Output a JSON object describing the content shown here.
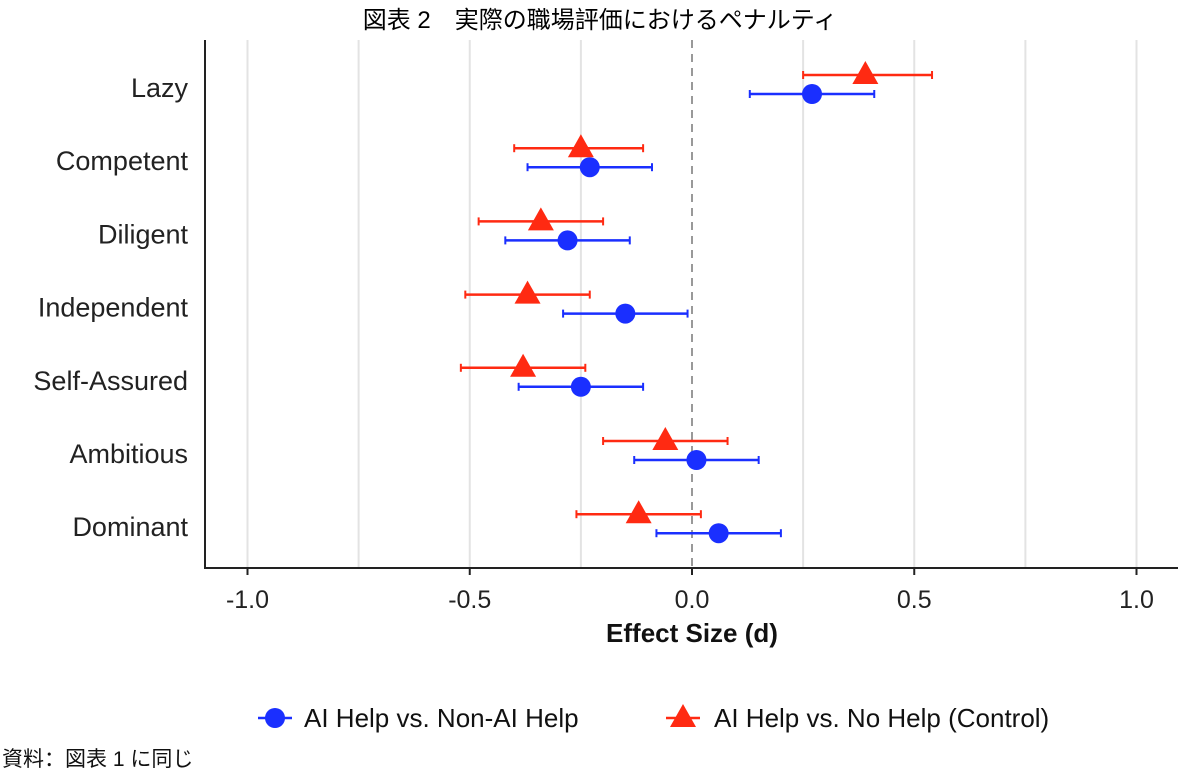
{
  "chart_data": {
    "type": "scatter",
    "title": "図表 2　実際の職場評価におけるペナルティ",
    "xlabel": "Effect Size (d)",
    "ylabel": "",
    "xlim": [
      -1.1,
      1.1
    ],
    "xticks": [
      -1.0,
      -0.5,
      0.0,
      0.5,
      1.0
    ],
    "xtick_labels": [
      "-1.0",
      "-0.5",
      "0.0",
      "0.5",
      "1.0"
    ],
    "grid": "vertical",
    "reference_line": 0.0,
    "categories": [
      "Lazy",
      "Competent",
      "Diligent",
      "Independent",
      "Self-Assured",
      "Ambitious",
      "Dominant"
    ],
    "series": [
      {
        "name": "AI Help vs. Non-AI Help",
        "marker": "circle",
        "color": "#1a2fff",
        "values": [
          0.27,
          -0.23,
          -0.28,
          -0.15,
          -0.25,
          0.01,
          0.06
        ],
        "ci_low": [
          0.13,
          -0.37,
          -0.42,
          -0.29,
          -0.39,
          -0.13,
          -0.08
        ],
        "ci_high": [
          0.41,
          -0.09,
          -0.14,
          -0.01,
          -0.11,
          0.15,
          0.2
        ]
      },
      {
        "name": "AI Help vs. No Help (Control)",
        "marker": "triangle",
        "color": "#ff2a12",
        "values": [
          0.39,
          -0.25,
          -0.34,
          -0.37,
          -0.38,
          -0.06,
          -0.12
        ],
        "ci_low": [
          0.25,
          -0.4,
          -0.48,
          -0.51,
          -0.52,
          -0.2,
          -0.26
        ],
        "ci_high": [
          0.54,
          -0.11,
          -0.2,
          -0.23,
          -0.24,
          0.08,
          0.02
        ]
      }
    ],
    "legend_position": "bottom"
  },
  "source_note": "資料：図表 1 に同じ"
}
